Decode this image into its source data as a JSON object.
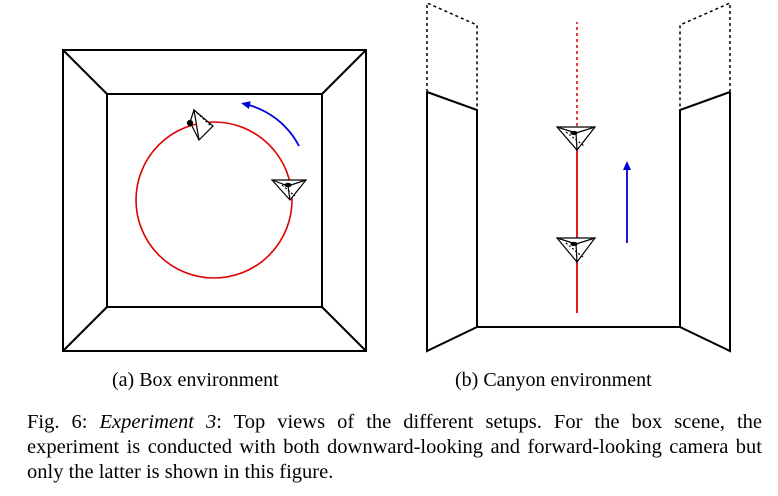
{
  "figure": {
    "subfigures": [
      {
        "label": "(a)",
        "caption": "Box environment"
      },
      {
        "label": "(b)",
        "caption": "Canyon environment"
      }
    ],
    "caption": {
      "prefix": "Fig. 6:",
      "experiment": "Experiment 3",
      "body": ": Top views of the different setups. For the box scene, the experiment is conducted with both downward-looking and forward-looking camera but only the latter is shown in this figure."
    }
  },
  "colors": {
    "trajectory": "#e00000",
    "motion_arrow": "#0000e0",
    "line": "#000000"
  }
}
